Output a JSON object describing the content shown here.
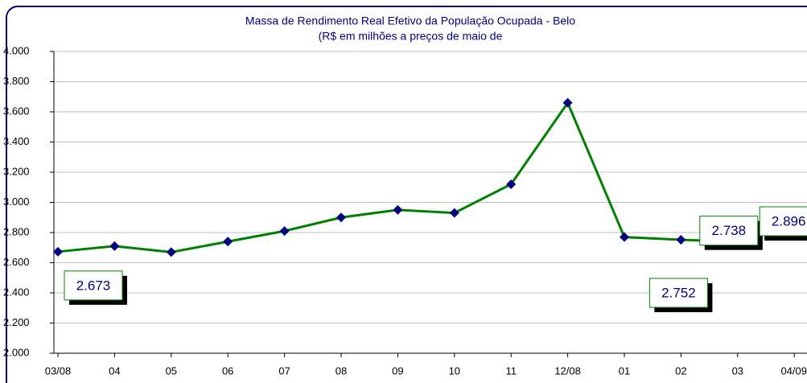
{
  "chart_data": {
    "type": "line",
    "title": "Massa de Rendimento Real Efetivo da População Ocupada - Belo",
    "subtitle": "(R$ em milhões a preços de maio de",
    "categories": [
      "03/08",
      "04",
      "05",
      "06",
      "07",
      "08",
      "09",
      "10",
      "11",
      "12/08",
      "01",
      "02",
      "03",
      "04/09"
    ],
    "series": [
      {
        "name": null,
        "color": "#008000",
        "marker_color": "#000080",
        "values": [
          2673,
          2710,
          2670,
          2740,
          2810,
          2900,
          2950,
          2930,
          3120,
          3660,
          2770,
          2752,
          2738,
          2896
        ],
        "value_labels": [
          "2.673",
          null,
          null,
          null,
          null,
          null,
          null,
          null,
          null,
          null,
          null,
          "2.752",
          "2.738",
          "2.896"
        ]
      }
    ],
    "ylim": [
      2000,
      4000
    ],
    "yticks": [
      {
        "value": 2000,
        "label": "2.000"
      },
      {
        "value": 2200,
        "label": "2.200"
      },
      {
        "value": 2400,
        "label": "2.400"
      },
      {
        "value": 2600,
        "label": "2.600"
      },
      {
        "value": 2800,
        "label": "2.800"
      },
      {
        "value": 3000,
        "label": "3.000"
      },
      {
        "value": 3200,
        "label": "3.200"
      },
      {
        "value": 3400,
        "label": "3.400"
      },
      {
        "value": 3600,
        "label": "3.600"
      },
      {
        "value": 3800,
        "label": "3.800"
      },
      {
        "value": 4000,
        "label": "4.000"
      }
    ],
    "grid": true
  }
}
